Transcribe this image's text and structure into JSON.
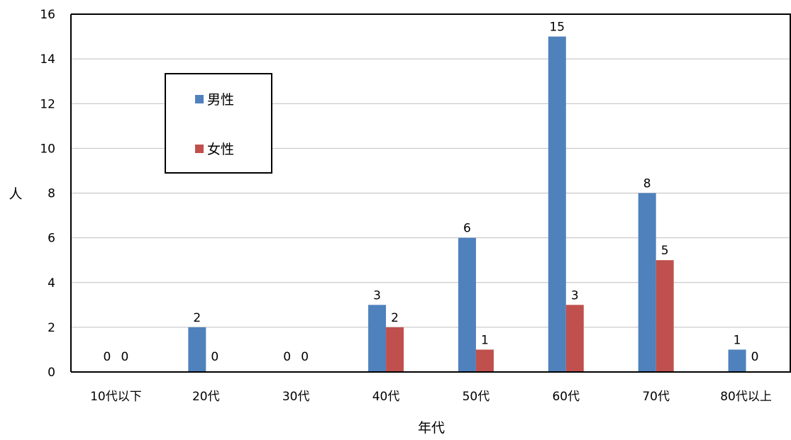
{
  "chart_data": {
    "type": "bar",
    "categories": [
      "10代以下",
      "20代",
      "30代",
      "40代",
      "50代",
      "60代",
      "70代",
      "80代以上"
    ],
    "series": [
      {
        "name": "男性",
        "values": [
          0,
          2,
          0,
          3,
          6,
          15,
          8,
          1
        ],
        "color": "#4F81BD"
      },
      {
        "name": "女性",
        "values": [
          0,
          0,
          0,
          2,
          1,
          3,
          5,
          0
        ],
        "color": "#C0504D"
      }
    ],
    "xlabel": "年代",
    "ylabel": "人",
    "ylim": [
      0,
      16
    ],
    "yticks": [
      0,
      2,
      4,
      6,
      8,
      10,
      12,
      14,
      16
    ],
    "grid": true,
    "legend_position": "top-left",
    "data_labels": true
  }
}
